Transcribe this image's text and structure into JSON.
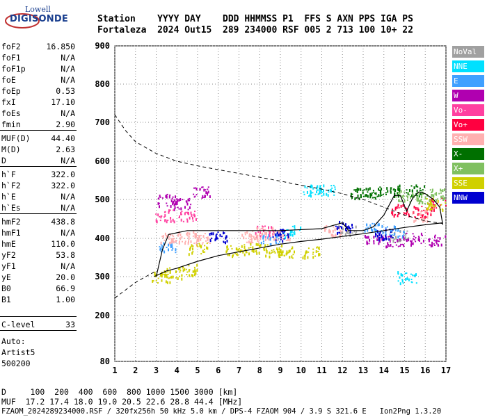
{
  "logo": {
    "line1": "Lowell",
    "line2": "DIGISONDE"
  },
  "header": {
    "line1": "Station    YYYY DAY    DDD HHMMSS P1  FFS S AXN PPS IGA PS",
    "line2": "Fortaleza  2024 Out15  289 234000 RSF 005 2 713 100 10+ 22"
  },
  "params": [
    {
      "name": "foF2",
      "value": "16.850"
    },
    {
      "name": "foF1",
      "value": "N/A"
    },
    {
      "name": "foF1p",
      "value": "N/A"
    },
    {
      "name": "foE",
      "value": "N/A"
    },
    {
      "name": "foEp",
      "value": "0.53"
    },
    {
      "name": "fxI",
      "value": "17.10"
    },
    {
      "name": "foEs",
      "value": "N/A"
    },
    {
      "name": "fmin",
      "value": "2.90"
    },
    {
      "name": "MUF(D)",
      "value": "44.40"
    },
    {
      "name": "M(D)",
      "value": "2.63"
    },
    {
      "name": "D",
      "value": "N/A"
    },
    {
      "name": "h`F",
      "value": "322.0"
    },
    {
      "name": "h`F2",
      "value": "322.0"
    },
    {
      "name": "h`E",
      "value": "N/A"
    },
    {
      "name": "h`Es",
      "value": "N/A"
    },
    {
      "name": "hmF2",
      "value": "438.8"
    },
    {
      "name": "hmF1",
      "value": "N/A"
    },
    {
      "name": "hmE",
      "value": "110.0"
    },
    {
      "name": "yF2",
      "value": "53.8"
    },
    {
      "name": "yF1",
      "value": "N/A"
    },
    {
      "name": "yE",
      "value": "20.0"
    },
    {
      "name": "B0",
      "value": "66.9"
    },
    {
      "name": "B1",
      "value": "1.00"
    },
    {
      "name": "C-level",
      "value": "33"
    }
  ],
  "auto": {
    "line1": "Auto:",
    "line2": "Artist5",
    "line3": "500200"
  },
  "legend": [
    {
      "label": "NoVal",
      "color": "#a0a0a0"
    },
    {
      "label": "NNE",
      "color": "#00e0ff"
    },
    {
      "label": "E",
      "color": "#40a0ff"
    },
    {
      "label": "W",
      "color": "#b000b0"
    },
    {
      "label": "Vo-",
      "color": "#ff40a0"
    },
    {
      "label": "Vo+",
      "color": "#ff0040"
    },
    {
      "label": "SSW",
      "color": "#ffb0b0"
    },
    {
      "label": "X-",
      "color": "#007000"
    },
    {
      "label": "X+",
      "color": "#80c060"
    },
    {
      "label": "SSE",
      "color": "#d0d000"
    },
    {
      "label": "NNW",
      "color": "#0000d0"
    }
  ],
  "footer": {
    "line1": "D     100  200  400  600  800 1000 1500 3000 [km]",
    "line2": "MUF  17.2 17.4 18.0 19.0 20.5 22.6 28.8 44.4 [MHz]",
    "line3": "FZAOM_2024289234000.RSF / 320fx256h 50 kHz 5.0 km / DPS-4 FZAOM 904 / 3.9 S 321.6 E   Ion2Png 1.3.20"
  },
  "chart_data": {
    "type": "scatter",
    "x_ticks": [
      "1",
      "2",
      "3",
      "4",
      "5",
      "6",
      "7",
      "8",
      "9",
      "10",
      "11",
      "12",
      "13",
      "14",
      "15",
      "16",
      "17"
    ],
    "y_ticks": [
      "80",
      "200",
      "300",
      "400",
      "500",
      "600",
      "700",
      "800",
      "900"
    ],
    "xlim": [
      1,
      17
    ],
    "ylim": [
      80,
      900
    ],
    "y_scale": "nonlinear (ionogram virtual height, km)",
    "grid": true,
    "series": [
      {
        "name": "NoVal",
        "clusters": [
          [
            12.2,
            420
          ],
          [
            14.8,
            410
          ]
        ]
      },
      {
        "name": "NNE",
        "clusters": [
          [
            10.5,
            525
          ],
          [
            11.2,
            525
          ],
          [
            9.5,
            420
          ],
          [
            15.1,
            300
          ]
        ]
      },
      {
        "name": "E",
        "clusters": [
          [
            3.5,
            380
          ],
          [
            8.5,
            400
          ],
          [
            13.5,
            430
          ],
          [
            14.5,
            420
          ]
        ]
      },
      {
        "name": "W",
        "clusters": [
          [
            3.5,
            500
          ],
          [
            4.2,
            490
          ],
          [
            5.2,
            520
          ],
          [
            13.5,
            400
          ],
          [
            14.5,
            395
          ],
          [
            15.5,
            400
          ],
          [
            16.5,
            395
          ]
        ]
      },
      {
        "name": "Vo-",
        "clusters": [
          [
            3.4,
            460
          ],
          [
            4.5,
            460
          ],
          [
            8.2,
            420
          ]
        ]
      },
      {
        "name": "Vo+",
        "clusters": [
          [
            14.8,
            475
          ],
          [
            15.8,
            470
          ],
          [
            16.6,
            490
          ]
        ]
      },
      {
        "name": "SSW",
        "clusters": [
          [
            3.6,
            400
          ],
          [
            4.5,
            405
          ],
          [
            5.2,
            400
          ],
          [
            7.5,
            405
          ],
          [
            8.2,
            415
          ],
          [
            9.0,
            410
          ],
          [
            11.5,
            420
          ],
          [
            15.8,
            460
          ]
        ]
      },
      {
        "name": "X-",
        "clusters": [
          [
            12.8,
            520
          ],
          [
            13.6,
            520
          ],
          [
            14.3,
            525
          ],
          [
            15.5,
            525
          ]
        ]
      },
      {
        "name": "X+",
        "clusters": [
          [
            15.0,
            510
          ],
          [
            16.0,
            505
          ],
          [
            16.6,
            515
          ]
        ]
      },
      {
        "name": "SSE",
        "clusters": [
          [
            3.2,
            300
          ],
          [
            3.8,
            310
          ],
          [
            4.5,
            320
          ],
          [
            5.0,
            375
          ],
          [
            6.8,
            370
          ],
          [
            7.6,
            375
          ],
          [
            8.6,
            370
          ],
          [
            9.2,
            365
          ],
          [
            10.5,
            365
          ],
          [
            16.5,
            490
          ]
        ]
      },
      {
        "name": "NNW",
        "clusters": [
          [
            6.0,
            405
          ],
          [
            9.0,
            410
          ],
          [
            12.1,
            430
          ],
          [
            14.0,
            410
          ]
        ]
      }
    ],
    "trace_solid": [
      [
        3.0,
        300
      ],
      [
        3.3,
        370
      ],
      [
        3.6,
        410
      ],
      [
        4.5,
        420
      ],
      [
        5.5,
        420
      ],
      [
        7,
        420
      ],
      [
        9,
        420
      ],
      [
        11,
        425
      ],
      [
        12,
        440
      ],
      [
        12.3,
        420
      ],
      [
        13.0,
        420
      ],
      [
        13.5,
        430
      ],
      [
        14.0,
        460
      ],
      [
        14.5,
        510
      ],
      [
        14.8,
        510
      ],
      [
        15.1,
        470
      ],
      [
        15.4,
        505
      ],
      [
        15.7,
        520
      ],
      [
        16.0,
        515
      ],
      [
        16.4,
        500
      ],
      [
        16.7,
        480
      ],
      [
        16.85,
        435
      ]
    ],
    "profile_solid": [
      [
        2.9,
        300
      ],
      [
        3.5,
        315
      ],
      [
        4,
        322
      ],
      [
        5,
        340
      ],
      [
        6,
        355
      ],
      [
        7,
        365
      ],
      [
        8,
        375
      ],
      [
        9,
        385
      ],
      [
        10,
        392
      ],
      [
        11,
        398
      ],
      [
        12,
        405
      ],
      [
        13,
        412
      ],
      [
        14,
        420
      ],
      [
        15,
        428
      ],
      [
        16,
        435
      ],
      [
        16.85,
        440
      ]
    ],
    "dashed_upper": [
      [
        1.0,
        720
      ],
      [
        1.5,
        680
      ],
      [
        2,
        650
      ],
      [
        3,
        620
      ],
      [
        4,
        600
      ],
      [
        5,
        588
      ],
      [
        6,
        578
      ],
      [
        7,
        568
      ],
      [
        8,
        558
      ],
      [
        9,
        548
      ],
      [
        10,
        537
      ],
      [
        11,
        527
      ],
      [
        12,
        515
      ],
      [
        13,
        500
      ],
      [
        14,
        480
      ],
      [
        15,
        460
      ],
      [
        16,
        445
      ],
      [
        16.85,
        438
      ]
    ],
    "dashed_lower": [
      [
        1.0,
        245
      ],
      [
        1.5,
        265
      ],
      [
        2,
        285
      ],
      [
        2.5,
        300
      ],
      [
        3,
        315
      ]
    ]
  }
}
